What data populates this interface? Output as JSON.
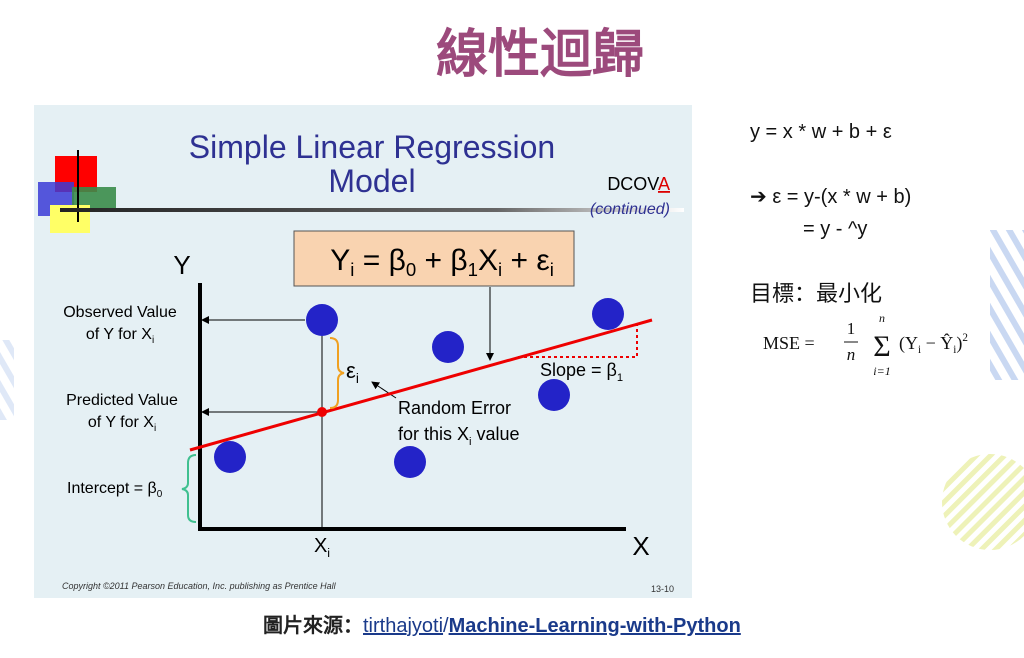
{
  "title": "線性迴歸",
  "figure": {
    "title_lines": [
      "Simple Linear Regression",
      "Model"
    ],
    "tag": [
      "DCOV",
      "A"
    ],
    "tag_note": "(continued)",
    "equation": [
      [
        "Y",
        "i"
      ],
      [
        " = β",
        "0"
      ],
      [
        " + β",
        "1"
      ],
      [
        "X",
        "i"
      ],
      [
        " + ε",
        "i"
      ]
    ],
    "y_axis": "Y",
    "x_axis": "X",
    "x_marker": [
      "X",
      "i"
    ],
    "observed": [
      "Observed Value",
      "of Y for X",
      "i"
    ],
    "predicted": [
      "Predicted Value",
      "of Y for X",
      "i"
    ],
    "intercept": [
      "Intercept = β",
      "0"
    ],
    "error_symbol": [
      "ε",
      "i"
    ],
    "slope": [
      "Slope = β",
      "1"
    ],
    "random_error": [
      "Random Error",
      "for this X",
      "i",
      " value"
    ],
    "copyright": "Copyright ©2011 Pearson Education, Inc. publishing as Prentice Hall",
    "page_number": "13-10"
  },
  "notes": {
    "formula": "y = x * w + b + ε",
    "error_def": "➔ ε = y-(x * w + b)",
    "error_def_cont": "= y - ^y",
    "goal": "目標：最小化",
    "mse": {
      "lhs": "MSE =",
      "numerator": "1",
      "denominator": "n",
      "sum_top": "n",
      "sum": "Σ",
      "sum_bottom": "i=1",
      "term": [
        "(Y",
        "i",
        " − Ŷ",
        "i",
        ")",
        "2"
      ]
    }
  },
  "source": {
    "label": "圖片來源：",
    "author": "tirthajyoti",
    "separator": "/",
    "repo": "Machine-Learning-with-Python"
  }
}
